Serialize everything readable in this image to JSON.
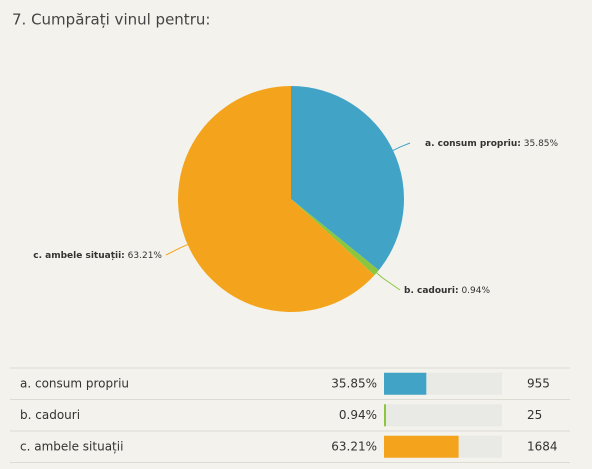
{
  "chart_data": {
    "type": "pie",
    "title": "7. Cumpărați vinul pentru:",
    "categories": [
      "a. consum propriu",
      "b. cadouri",
      "c. ambele situații"
    ],
    "label_names": [
      "a. consum propriu:",
      "b. cadouri:",
      "c. ambele situații:"
    ],
    "values": [
      35.85,
      0.94,
      63.21
    ],
    "value_labels": [
      "35.85%",
      "0.94%",
      "63.21%"
    ],
    "counts": [
      955,
      25,
      1684
    ],
    "colors": [
      "#41a3c6",
      "#8cc63f",
      "#f4a41c"
    ]
  }
}
